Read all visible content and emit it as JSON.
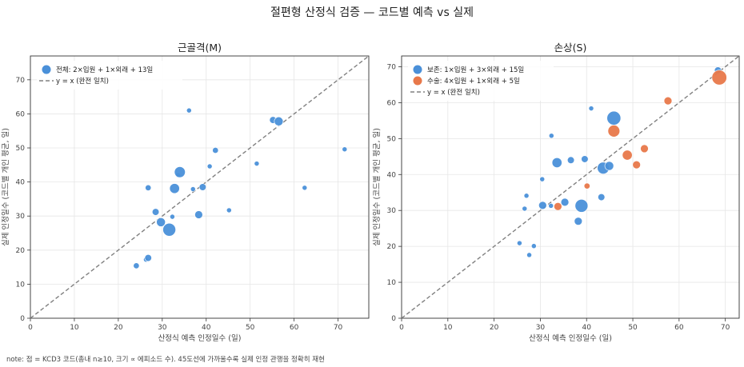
{
  "figure": {
    "title": "절편형 산정식 검증 — 코드별 예측 vs 실제",
    "note": "note: 점 = KCD3 코드(총내 n≥10, 크기 ∝ 에피소드 수). 45도선에 가까울수록 실제 인정 관행을 정확히 재현"
  },
  "colors": {
    "blue": "#4a90d9",
    "orange": "#e8784a",
    "diag": "#808080",
    "grid": "#e6e6e6",
    "axis": "#333333"
  },
  "chart_data": [
    {
      "type": "scatter",
      "title": "근골격(M)",
      "xlabel": "산정식 예측 인정일수 (일)",
      "ylabel": "실제 인정일수 (코드별 개인 평균, 일)",
      "xlim": [
        0,
        77
      ],
      "ylim": [
        0,
        77
      ],
      "xticks": [
        0,
        10,
        20,
        30,
        40,
        50,
        60,
        70
      ],
      "yticks": [
        0,
        10,
        20,
        30,
        40,
        50,
        60,
        70
      ],
      "grid": true,
      "legend_position": "top-left",
      "diagonal_label": "y = x (완전 일치)",
      "series": [
        {
          "name": "전체: 2×입원 + 1×외래 + 13일",
          "color": "#4a90d9",
          "points": [
            {
              "x": 24.1,
              "y": 15.4,
              "s": 4
            },
            {
              "x": 26.3,
              "y": 17.2,
              "s": 3
            },
            {
              "x": 26.8,
              "y": 17.7,
              "s": 5
            },
            {
              "x": 26.8,
              "y": 38.3,
              "s": 4
            },
            {
              "x": 28.5,
              "y": 31.2,
              "s": 5
            },
            {
              "x": 29.7,
              "y": 28.2,
              "s": 7
            },
            {
              "x": 31.6,
              "y": 26.0,
              "s": 11
            },
            {
              "x": 32.3,
              "y": 29.8,
              "s": 3
            },
            {
              "x": 32.8,
              "y": 38.1,
              "s": 8
            },
            {
              "x": 33.6,
              "y": 42.0,
              "s": 3
            },
            {
              "x": 34.0,
              "y": 42.9,
              "s": 9
            },
            {
              "x": 36.1,
              "y": 61.0,
              "s": 3
            },
            {
              "x": 37.0,
              "y": 37.9,
              "s": 3
            },
            {
              "x": 38.3,
              "y": 30.4,
              "s": 6
            },
            {
              "x": 39.2,
              "y": 38.5,
              "s": 5
            },
            {
              "x": 40.8,
              "y": 44.6,
              "s": 3
            },
            {
              "x": 42.1,
              "y": 49.3,
              "s": 4
            },
            {
              "x": 45.2,
              "y": 31.7,
              "s": 3
            },
            {
              "x": 51.5,
              "y": 45.4,
              "s": 3
            },
            {
              "x": 55.2,
              "y": 58.2,
              "s": 5
            },
            {
              "x": 56.5,
              "y": 57.8,
              "s": 7
            },
            {
              "x": 62.4,
              "y": 38.3,
              "s": 3
            },
            {
              "x": 71.5,
              "y": 49.6,
              "s": 3
            }
          ]
        }
      ]
    },
    {
      "type": "scatter",
      "title": "손상(S)",
      "xlabel": "산정식 예측 인정일수 (일)",
      "ylabel": "실제 인정일수 (코드별 개인 평균, 일)",
      "xlim": [
        0,
        73
      ],
      "ylim": [
        0,
        73
      ],
      "xticks": [
        0,
        10,
        20,
        30,
        40,
        50,
        60,
        70
      ],
      "yticks": [
        0,
        10,
        20,
        30,
        40,
        50,
        60,
        70
      ],
      "grid": true,
      "legend_position": "top-left",
      "diagonal_label": "y = x (완전 일치)",
      "series": [
        {
          "name": "보존: 1×입원 + 3×외래 + 15일",
          "color": "#4a90d9",
          "points": [
            {
              "x": 25.5,
              "y": 20.9,
              "s": 3
            },
            {
              "x": 26.6,
              "y": 30.5,
              "s": 3
            },
            {
              "x": 27.0,
              "y": 34.1,
              "s": 3
            },
            {
              "x": 27.6,
              "y": 17.6,
              "s": 3
            },
            {
              "x": 28.6,
              "y": 20.1,
              "s": 3
            },
            {
              "x": 30.4,
              "y": 38.7,
              "s": 3
            },
            {
              "x": 30.5,
              "y": 31.4,
              "s": 6
            },
            {
              "x": 32.3,
              "y": 31.3,
              "s": 3
            },
            {
              "x": 32.4,
              "y": 50.8,
              "s": 3
            },
            {
              "x": 33.6,
              "y": 43.3,
              "s": 8
            },
            {
              "x": 35.3,
              "y": 32.3,
              "s": 6
            },
            {
              "x": 36.6,
              "y": 44.0,
              "s": 5
            },
            {
              "x": 38.2,
              "y": 27.0,
              "s": 6
            },
            {
              "x": 38.9,
              "y": 31.3,
              "s": 11
            },
            {
              "x": 39.6,
              "y": 44.3,
              "s": 5
            },
            {
              "x": 41.0,
              "y": 58.4,
              "s": 3
            },
            {
              "x": 43.2,
              "y": 33.7,
              "s": 5
            },
            {
              "x": 43.6,
              "y": 41.8,
              "s": 10
            },
            {
              "x": 44.9,
              "y": 42.4,
              "s": 7
            },
            {
              "x": 45.9,
              "y": 55.7,
              "s": 12
            },
            {
              "x": 68.4,
              "y": 69.0,
              "s": 5
            }
          ]
        },
        {
          "name": "수술: 4×입원 + 1×외래 + 5일",
          "color": "#e8784a",
          "points": [
            {
              "x": 33.8,
              "y": 31.1,
              "s": 6
            },
            {
              "x": 40.1,
              "y": 36.8,
              "s": 4
            },
            {
              "x": 45.9,
              "y": 52.1,
              "s": 10
            },
            {
              "x": 48.8,
              "y": 45.4,
              "s": 8
            },
            {
              "x": 50.8,
              "y": 42.7,
              "s": 6
            },
            {
              "x": 52.5,
              "y": 47.2,
              "s": 6
            },
            {
              "x": 57.6,
              "y": 60.5,
              "s": 6
            },
            {
              "x": 68.7,
              "y": 67.0,
              "s": 13
            }
          ]
        }
      ]
    }
  ]
}
